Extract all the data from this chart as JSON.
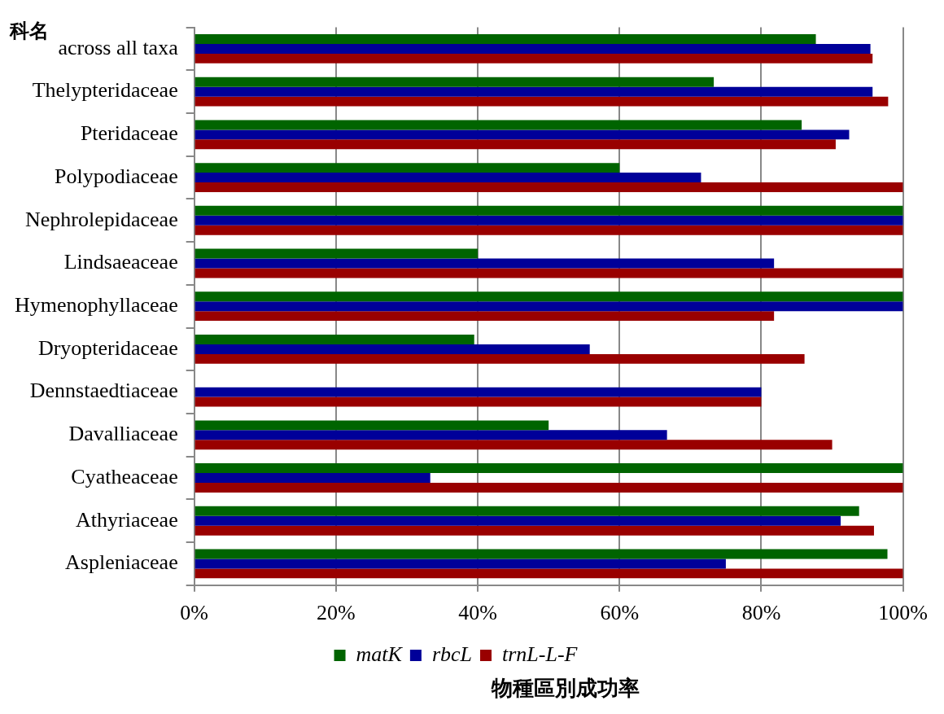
{
  "chart_data": {
    "type": "bar",
    "orientation": "horizontal",
    "ylabel": "科名",
    "xlabel": "物種區別成功率",
    "categories": [
      "across all taxa",
      "Thelypteridaceae",
      "Pteridaceae",
      "Polypodiaceae",
      "Nephrolepidaceae",
      "Lindsaeaceae",
      "Hymenophyllaceae",
      "Dryopteridaceae",
      "Dennstaedtiaceae",
      "Davalliaceae",
      "Cyatheaceae",
      "Athyriaceae",
      "Aspleniaceae"
    ],
    "series": [
      {
        "name": "matK",
        "color": "#006400",
        "values": [
          87.7,
          73.3,
          85.7,
          60,
          100,
          40,
          100,
          39.5,
          0,
          50,
          100,
          93.8,
          97.8
        ]
      },
      {
        "name": "rbcL",
        "color": "#000099",
        "values": [
          95.4,
          95.7,
          92.4,
          71.5,
          100,
          81.8,
          100,
          55.8,
          80,
          66.7,
          33.3,
          91.2,
          75
        ]
      },
      {
        "name": "trnL-L-F",
        "color": "#990000",
        "values": [
          95.7,
          97.9,
          90.5,
          100,
          100,
          100,
          81.8,
          86.1,
          80,
          90,
          100,
          95.9,
          100
        ]
      }
    ],
    "xlim": [
      0,
      100
    ],
    "xticks": [
      {
        "value": 0,
        "label": "0%"
      },
      {
        "value": 20,
        "label": "20%"
      },
      {
        "value": 40,
        "label": "40%"
      },
      {
        "value": 60,
        "label": "60%"
      },
      {
        "value": 80,
        "label": "80%"
      },
      {
        "value": 100,
        "label": "100%"
      }
    ],
    "grid": "x",
    "legend": "bottom"
  }
}
